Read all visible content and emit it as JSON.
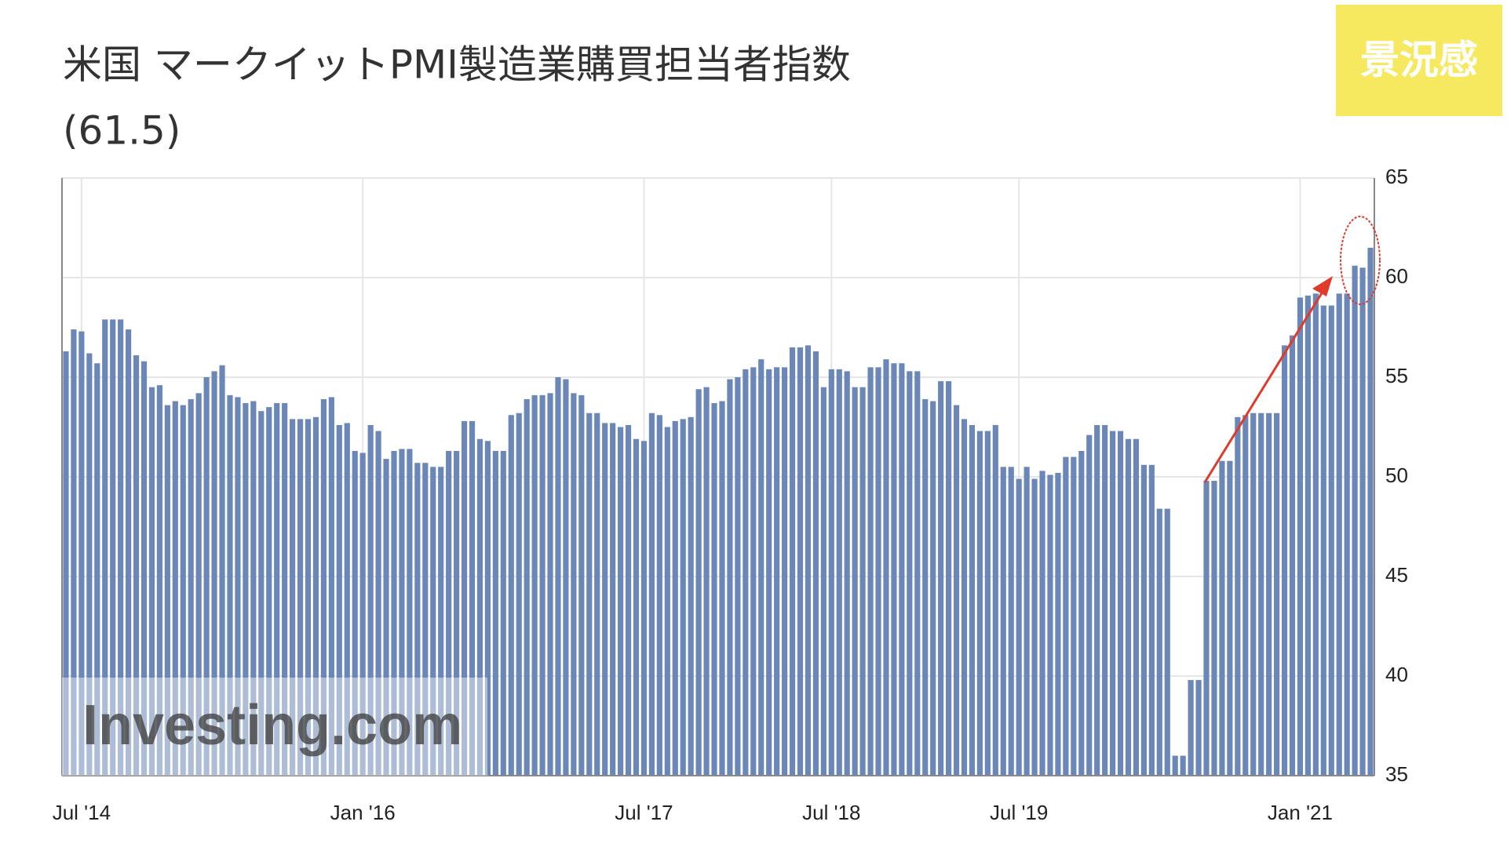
{
  "chart_data": {
    "type": "bar",
    "title": "米国 マークイットPMI製造業購買担当者指数",
    "subtitle": "(61.5)",
    "badge": "景況感",
    "watermark": "Investing.com",
    "color": "#6a87b8",
    "grid": true,
    "y_axis_side": "right",
    "ylim": [
      35,
      65
    ],
    "yticks": [
      35,
      40,
      45,
      50,
      55,
      60,
      65
    ],
    "categories": [
      null,
      null,
      "Jul '14",
      null,
      null,
      null,
      null,
      null,
      null,
      null,
      null,
      null,
      null,
      null,
      null,
      null,
      null,
      null,
      null,
      null,
      null,
      null,
      null,
      null,
      null,
      null,
      null,
      null,
      null,
      null,
      null,
      null,
      null,
      null,
      null,
      null,
      null,
      null,
      "Jan '16",
      null,
      null,
      null,
      null,
      null,
      null,
      null,
      null,
      null,
      null,
      null,
      null,
      null,
      null,
      null,
      null,
      null,
      null,
      null,
      null,
      null,
      null,
      null,
      null,
      null,
      null,
      null,
      null,
      null,
      null,
      null,
      null,
      null,
      null,
      null,
      "Jul '17",
      null,
      null,
      null,
      null,
      null,
      null,
      null,
      null,
      null,
      null,
      null,
      null,
      null,
      null,
      null,
      null,
      null,
      null,
      null,
      null,
      null,
      null,
      null,
      "Jul '18",
      null,
      null,
      null,
      null,
      null,
      null,
      null,
      null,
      null,
      null,
      null,
      null,
      null,
      null,
      null,
      null,
      null,
      null,
      null,
      null,
      null,
      null,
      null,
      "Jul '19",
      null,
      null,
      null,
      null,
      null,
      null,
      null,
      null,
      null,
      null,
      null,
      null,
      null,
      null,
      null,
      null,
      null,
      null,
      null,
      null,
      null,
      null,
      null,
      null,
      null,
      null,
      null,
      null,
      null,
      null,
      null,
      null,
      null,
      null,
      null,
      "Jan '21",
      null,
      null,
      null,
      null,
      null,
      null,
      null,
      null,
      null
    ],
    "values": [
      56.3,
      57.4,
      57.3,
      56.2,
      55.7,
      57.9,
      57.9,
      57.9,
      57.4,
      56.1,
      55.8,
      54.5,
      54.6,
      53.6,
      53.8,
      53.6,
      53.9,
      54.2,
      55.0,
      55.3,
      55.6,
      54.1,
      54.0,
      53.7,
      53.8,
      53.3,
      53.5,
      53.7,
      53.7,
      52.9,
      52.9,
      52.9,
      53.0,
      53.9,
      54.0,
      52.6,
      52.7,
      51.3,
      51.2,
      52.6,
      52.3,
      50.9,
      51.3,
      51.4,
      51.4,
      50.7,
      50.7,
      50.5,
      50.5,
      51.3,
      51.3,
      52.8,
      52.8,
      51.9,
      51.8,
      51.3,
      51.3,
      53.1,
      53.2,
      53.9,
      54.1,
      54.1,
      54.2,
      55.0,
      54.9,
      54.2,
      54.1,
      53.2,
      53.2,
      52.7,
      52.7,
      52.5,
      52.6,
      51.9,
      51.8,
      53.2,
      53.1,
      52.5,
      52.8,
      52.9,
      53.0,
      54.4,
      54.5,
      53.7,
      53.8,
      54.9,
      55.0,
      55.4,
      55.5,
      55.9,
      55.4,
      55.5,
      55.5,
      56.5,
      56.5,
      56.6,
      56.3,
      54.5,
      55.4,
      55.4,
      55.3,
      54.5,
      54.5,
      55.5,
      55.5,
      55.9,
      55.7,
      55.7,
      55.3,
      55.3,
      53.9,
      53.8,
      54.8,
      54.8,
      53.6,
      52.9,
      52.6,
      52.3,
      52.3,
      52.6,
      50.5,
      50.5,
      49.9,
      50.5,
      49.9,
      50.3,
      50.1,
      50.2,
      51.0,
      51.0,
      51.3,
      52.1,
      52.6,
      52.6,
      52.3,
      52.3,
      51.9,
      51.9,
      50.6,
      50.6,
      48.4,
      48.4,
      36.0,
      36.0,
      39.8,
      39.8,
      49.8,
      49.8,
      50.8,
      50.8,
      53.0,
      53.1,
      53.2,
      53.2,
      53.2,
      53.2,
      56.6,
      57.1,
      59.0,
      59.1,
      59.2,
      58.6,
      58.6,
      59.2,
      59.2,
      60.6,
      60.5,
      61.5
    ]
  }
}
